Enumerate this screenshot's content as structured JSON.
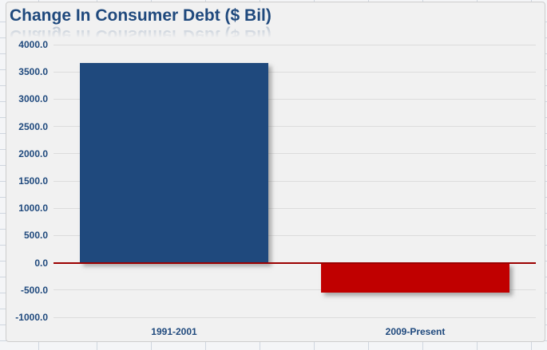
{
  "window": {
    "chart_background": "#f1f1f1",
    "worksheet_background": "#f4f5f7"
  },
  "chart_data": {
    "type": "bar",
    "title": "Change In Consumer Debt ($ Bil)",
    "title_color": "#1F497D",
    "categories": [
      "1991-2001",
      "2009-Present"
    ],
    "values": [
      3670,
      -550
    ],
    "bar_colors": [
      "#1F497D",
      "#C00000"
    ],
    "xlabel": "",
    "ylabel": "",
    "ylim": [
      -1000,
      4000
    ],
    "ytick_step": 500,
    "yticks": [
      {
        "value": 4000,
        "label": "4000.0"
      },
      {
        "value": 3500,
        "label": "3500.0"
      },
      {
        "value": 3000,
        "label": "3000.0"
      },
      {
        "value": 2500,
        "label": "2500.0"
      },
      {
        "value": 2000,
        "label": "2000.0"
      },
      {
        "value": 1500,
        "label": "1500.0"
      },
      {
        "value": 1000,
        "label": "1000.0"
      },
      {
        "value": 500,
        "label": "500.0"
      },
      {
        "value": 0,
        "label": "0.0"
      },
      {
        "value": -500,
        "label": "-500.0"
      },
      {
        "value": -1000,
        "label": "-1000.0"
      }
    ],
    "legend": "none",
    "grid": true,
    "gridline_color": "#dcdcdc",
    "zero_line_color": "#9B0000",
    "axis_label_color": "#1F497D"
  }
}
